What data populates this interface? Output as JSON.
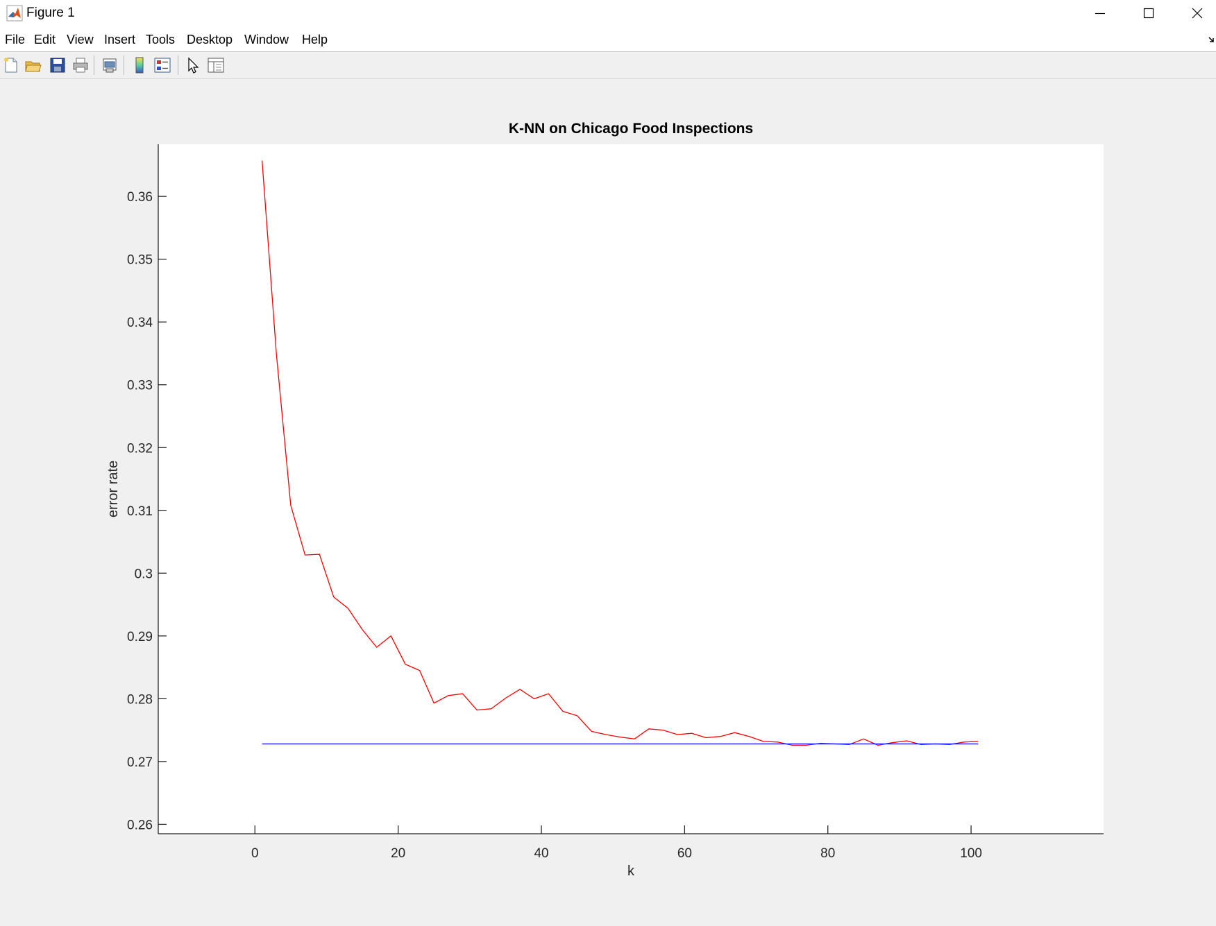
{
  "window": {
    "title": "Figure 1"
  },
  "menu": [
    "File",
    "Edit",
    "View",
    "Insert",
    "Tools",
    "Desktop",
    "Window",
    "Help"
  ],
  "toolbar": [
    "new-figure-icon",
    "open-file-icon",
    "save-icon",
    "print-icon",
    "print-preview-icon",
    "colorbar-icon",
    "legend-icon",
    "pointer-icon",
    "property-editor-icon"
  ],
  "colors": {
    "series_red": "#ff0000",
    "series_blue": "#0000ff"
  },
  "chart_data": {
    "type": "line",
    "title": "K-NN on Chicago Food Inspections",
    "xlabel": "k",
    "ylabel": "error rate",
    "xlim": [
      -13.5,
      118.5
    ],
    "ylim": [
      0.2585,
      0.3683
    ],
    "xticks": [
      0,
      20,
      40,
      60,
      80,
      100
    ],
    "xtick_labels": [
      "0",
      "20",
      "40",
      "60",
      "80",
      "100"
    ],
    "yticks": [
      0.26,
      0.27,
      0.28,
      0.29,
      0.3,
      0.31,
      0.32,
      0.33,
      0.34,
      0.35,
      0.36
    ],
    "ytick_labels": [
      "0.26",
      "0.27",
      "0.28",
      "0.29",
      "0.3",
      "0.31",
      "0.32",
      "0.33",
      "0.34",
      "0.35",
      "0.36"
    ],
    "grid": false,
    "series": [
      {
        "color": "#ff0000",
        "x": [
          1,
          3,
          5,
          7,
          9,
          11,
          13,
          15,
          17,
          19,
          21,
          23,
          25,
          27,
          29,
          31,
          33,
          35,
          37,
          39,
          41,
          43,
          45,
          47,
          49,
          51,
          53,
          55,
          57,
          59,
          61,
          63,
          65,
          67,
          69,
          71,
          73,
          75,
          77,
          79,
          81,
          83,
          85,
          87,
          89,
          91,
          93,
          95,
          97,
          99,
          101
        ],
        "y": [
          0.3657,
          0.3348,
          0.3108,
          0.3029,
          0.303,
          0.2962,
          0.2944,
          0.291,
          0.2882,
          0.29,
          0.2855,
          0.2845,
          0.2793,
          0.2805,
          0.2808,
          0.2782,
          0.2784,
          0.2801,
          0.2815,
          0.28,
          0.2808,
          0.278,
          0.2773,
          0.2748,
          0.2743,
          0.2739,
          0.2736,
          0.2752,
          0.275,
          0.2743,
          0.2745,
          0.2738,
          0.274,
          0.2746,
          0.274,
          0.2732,
          0.2731,
          0.2726,
          0.2726,
          0.2729,
          0.2728,
          0.2727,
          0.2736,
          0.2726,
          0.273,
          0.2733,
          0.2727,
          0.2728,
          0.2727,
          0.2731,
          0.2732
        ]
      },
      {
        "color": "#0000ff",
        "x": [
          1,
          101
        ],
        "y": [
          0.2728,
          0.2728
        ]
      }
    ]
  }
}
